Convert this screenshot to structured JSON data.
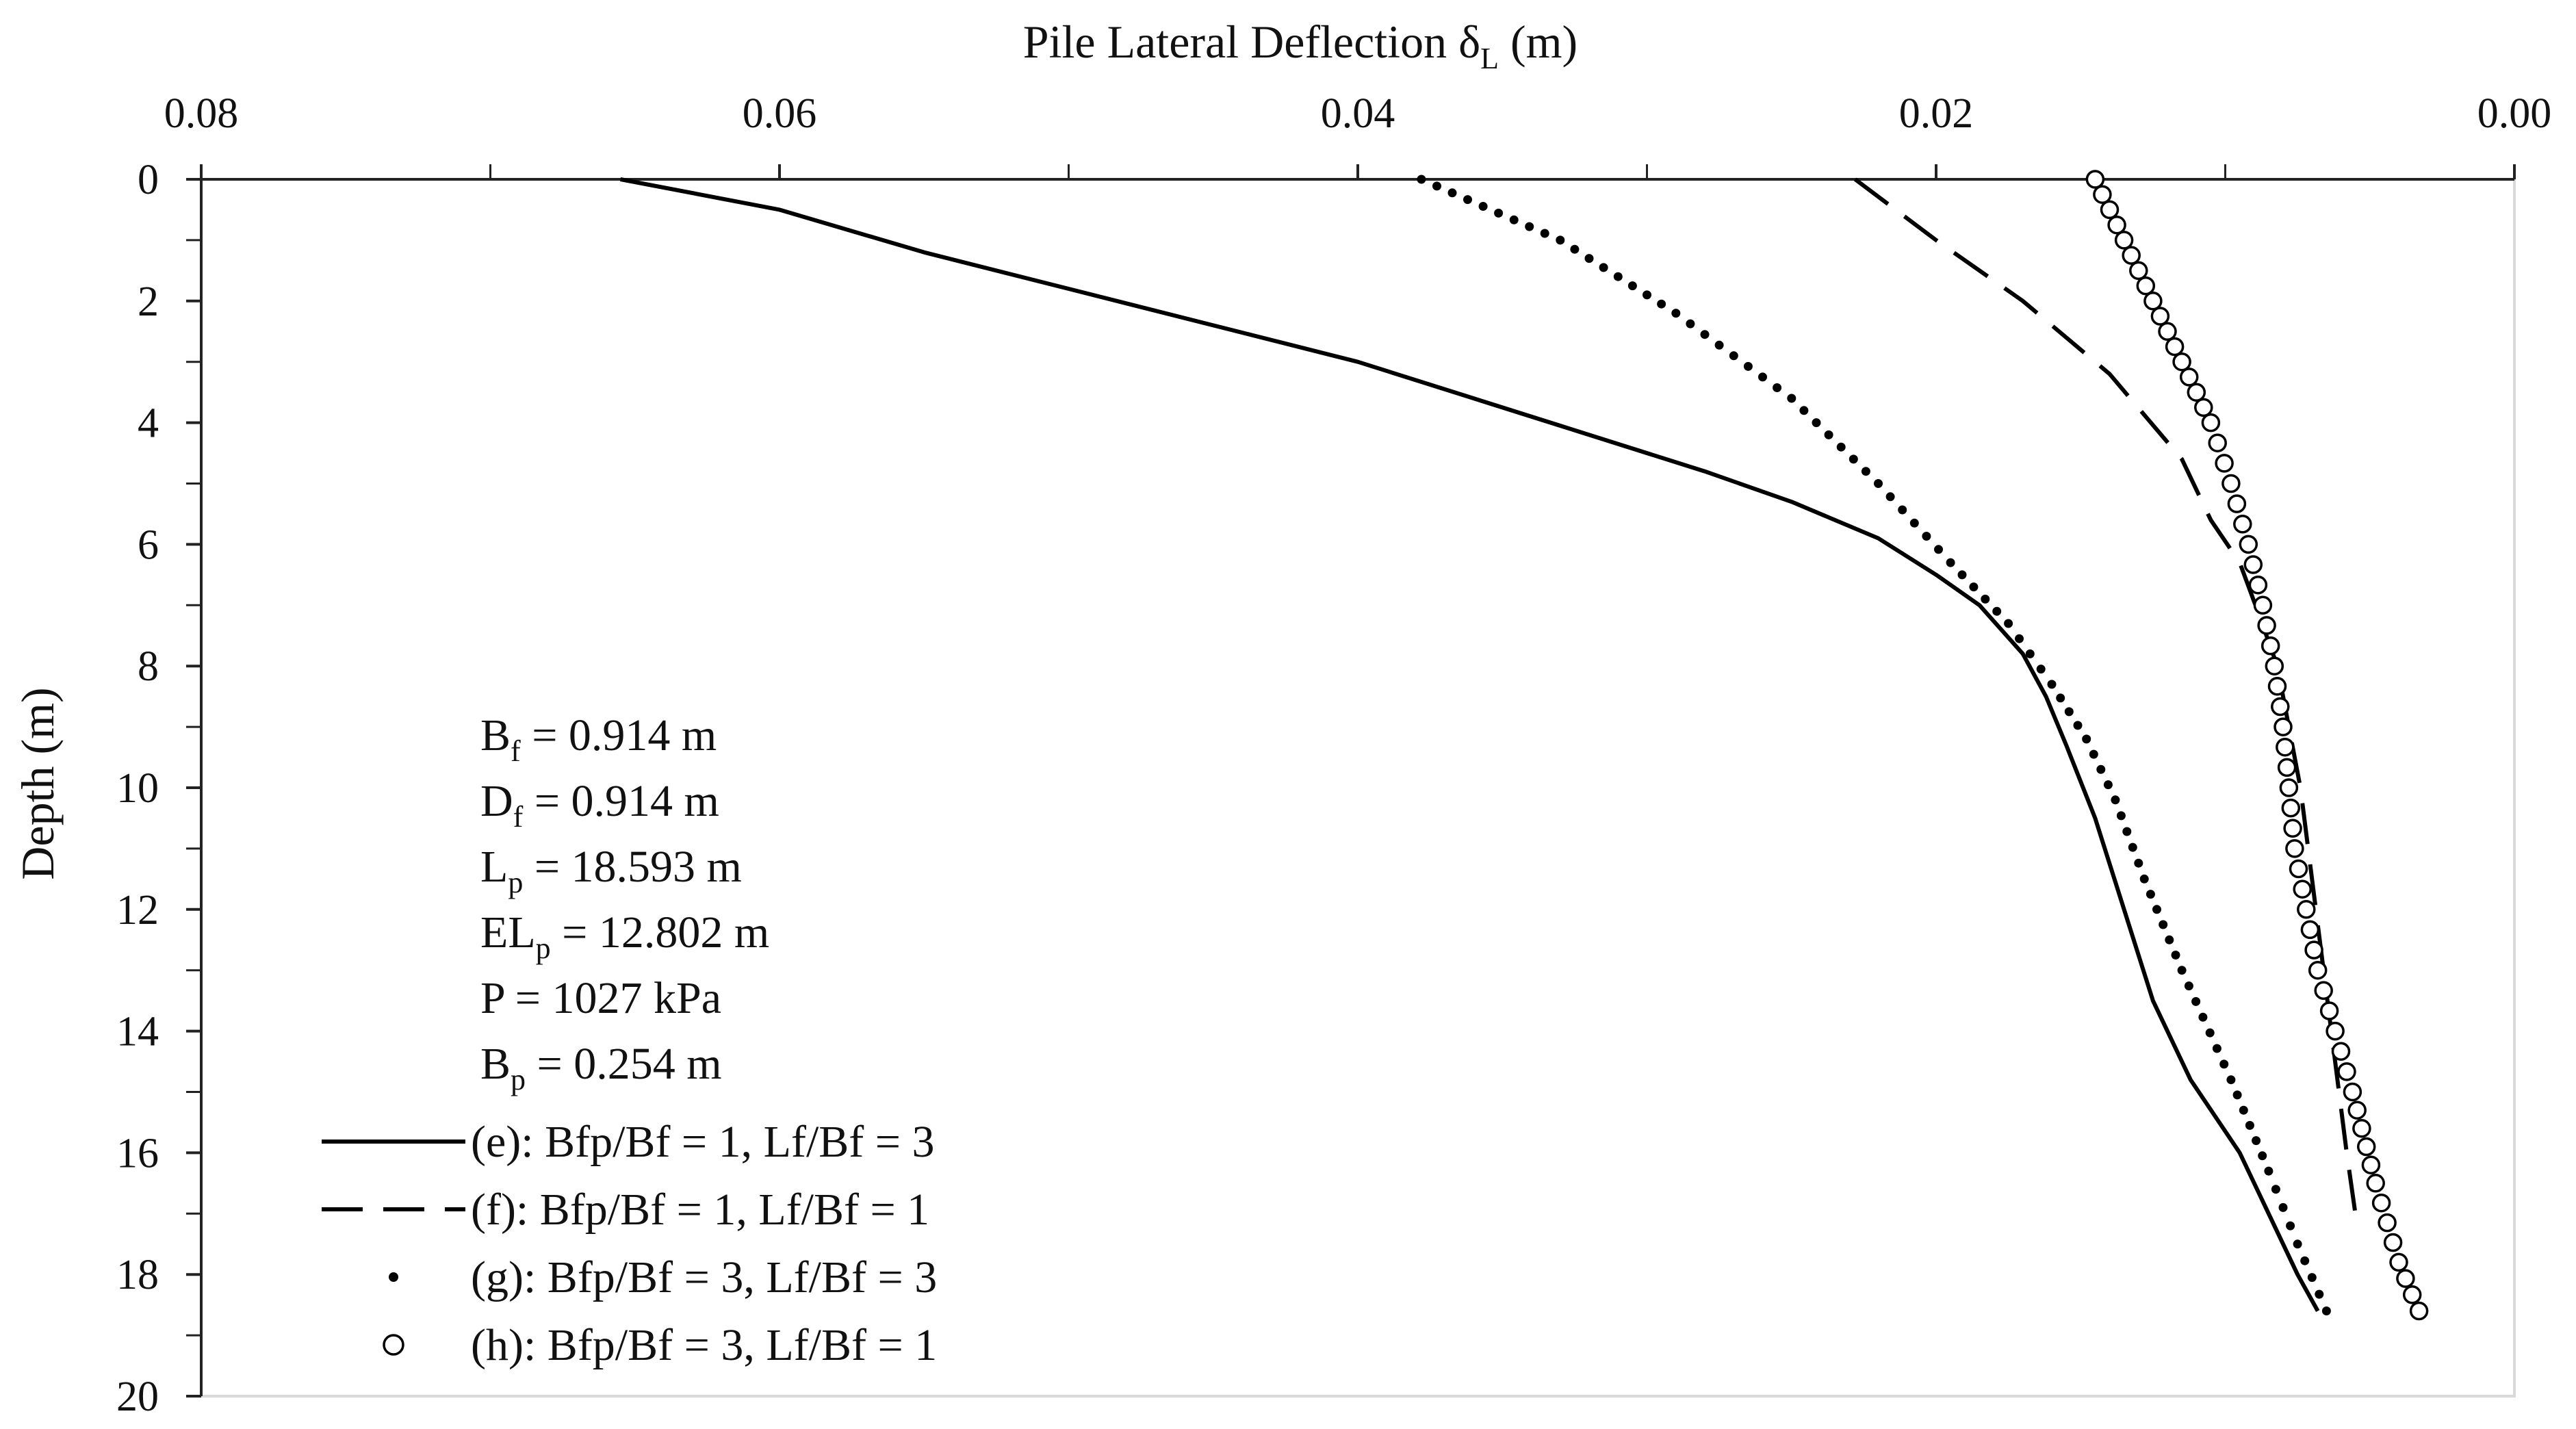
{
  "chart_data": {
    "type": "line",
    "title": "",
    "xlabel": {
      "main": "Pile Lateral Deflection δ",
      "sub": "L",
      "unit": " (m)"
    },
    "ylabel": "Depth (m)",
    "x_axis_position": "top",
    "x_reversed": true,
    "y_reversed": true,
    "xlim": [
      0,
      0.08
    ],
    "ylim": [
      0,
      20
    ],
    "x_ticks": [
      0.08,
      0.06,
      0.04,
      0.02,
      0.0
    ],
    "x_tick_labels": [
      "0.08",
      "0.06",
      "0.04",
      "0.02",
      "0.00"
    ],
    "y_ticks": [
      0,
      2,
      4,
      6,
      8,
      10,
      12,
      14,
      16,
      18,
      20
    ],
    "y_tick_labels": [
      "0",
      "2",
      "4",
      "6",
      "8",
      "10",
      "12",
      "14",
      "16",
      "18",
      "20"
    ],
    "grid": false,
    "annotations": [
      {
        "main": "B",
        "sub": "f",
        "rest": "  = 0.914 m"
      },
      {
        "main": "D",
        "sub": "f",
        "rest": "  = 0.914 m"
      },
      {
        "main": "L",
        "sub": "p",
        "rest": " = 18.593 m"
      },
      {
        "main": "EL",
        "sub": "p",
        "rest": " = 12.802 m"
      },
      {
        "main": "P",
        "sub": "",
        "rest": "  = 1027  kPa"
      },
      {
        "main": "B",
        "sub": "p",
        "rest": "  = 0.254 m"
      }
    ],
    "legend_position": "bottom-left",
    "series": [
      {
        "name": "(e): Bfp/Bf = 1, Lf/Bf = 3",
        "style": "solid",
        "x": [
          0.0655,
          0.06,
          0.055,
          0.05,
          0.045,
          0.04,
          0.036,
          0.032,
          0.028,
          0.025,
          0.022,
          0.02,
          0.0185,
          0.017,
          0.0162,
          0.0155,
          0.0145,
          0.0135,
          0.0125,
          0.0112,
          0.0095,
          0.0085,
          0.0075,
          0.0068
        ],
        "y": [
          0,
          0.5,
          1.2,
          1.8,
          2.4,
          3.0,
          3.6,
          4.2,
          4.8,
          5.3,
          5.9,
          6.5,
          7.0,
          7.8,
          8.5,
          9.3,
          10.5,
          12.0,
          13.5,
          14.8,
          16.0,
          17.0,
          18.0,
          18.6
        ]
      },
      {
        "name": "(f): Bfp/Bf = 1, Lf/Bf = 1",
        "style": "dashed",
        "x": [
          0.0228,
          0.02,
          0.017,
          0.014,
          0.0115,
          0.0105,
          0.0095,
          0.0088,
          0.0082,
          0.0078,
          0.0074,
          0.007,
          0.0066,
          0.0062,
          0.0058,
          0.0055
        ],
        "y": [
          0,
          1.0,
          2.0,
          3.2,
          4.6,
          5.6,
          6.3,
          7.2,
          8.0,
          9.0,
          10.0,
          11.5,
          13.0,
          14.5,
          16.0,
          17.0
        ]
      },
      {
        "name": "(g): Bfp/Bf = 3, Lf/Bf = 3",
        "style": "dotted",
        "x": [
          0.0378,
          0.033,
          0.029,
          0.025,
          0.022,
          0.0195,
          0.0175,
          0.016,
          0.0148,
          0.0138,
          0.0128,
          0.0115,
          0.0098,
          0.0085,
          0.0075,
          0.0065
        ],
        "y": [
          0,
          1.0,
          2.2,
          3.6,
          5.0,
          6.3,
          7.3,
          8.3,
          9.2,
          10.2,
          11.5,
          13.0,
          14.8,
          16.3,
          17.5,
          18.6
        ]
      },
      {
        "name": "(h): Bfp/Bf = 3, Lf/Bf = 1",
        "style": "circles",
        "x": [
          0.0145,
          0.0135,
          0.0125,
          0.0115,
          0.0105,
          0.0098,
          0.0092,
          0.0087,
          0.0083,
          0.008,
          0.0078,
          0.0076,
          0.0072,
          0.0068,
          0.0062,
          0.0056,
          0.0048,
          0.004,
          0.0033
        ],
        "y": [
          0,
          1.0,
          2.0,
          3.0,
          4.0,
          5.0,
          6.0,
          7.0,
          8.0,
          9.0,
          10.0,
          11.0,
          12.0,
          13.0,
          14.0,
          15.0,
          16.5,
          17.8,
          18.6
        ]
      }
    ]
  }
}
